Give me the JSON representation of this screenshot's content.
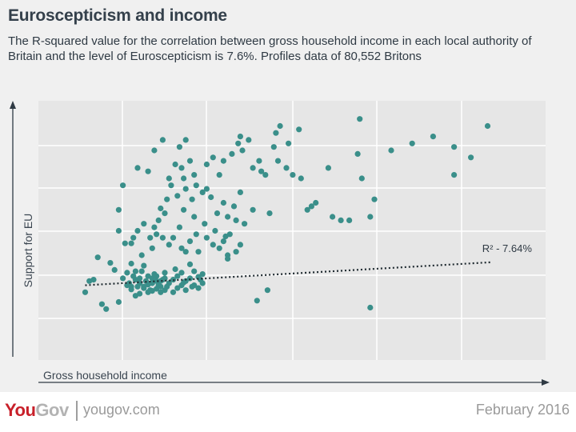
{
  "header": {
    "title": "Euroscepticism and income",
    "subtitle": "The R-squared value for the correlation between gross household income in each local authority of Britain and the level of Euroscepticism is 7.6%. Profiles data of 80,552 Britons"
  },
  "footer": {
    "brand_you": "You",
    "brand_gov": "Gov",
    "site": "yougov.com",
    "date": "February 2016"
  },
  "colors": {
    "point": "#3a8f8a",
    "background": "#f0f0f0",
    "grid": "#ffffff",
    "axis": "#2f3a44",
    "brand_red": "#c8202a"
  },
  "chart_data": {
    "type": "scatter",
    "title": "Euroscepticism and income",
    "xlabel": "Gross household income",
    "ylabel": "Support for EU",
    "grid": true,
    "axis_ticks_labeled": false,
    "x_grid_lines": 5,
    "y_grid_lines": 5,
    "trendline": {
      "style": "dotted",
      "label": "R² - 7.64%",
      "start": [
        0.2,
        0.52
      ],
      "end": [
        9.9,
        0.85
      ]
    },
    "points": [
      [
        0.2,
        0.42
      ],
      [
        0.3,
        0.58
      ],
      [
        0.4,
        0.6
      ],
      [
        0.6,
        0.25
      ],
      [
        0.7,
        0.18
      ],
      [
        0.5,
        0.92
      ],
      [
        0.8,
        0.84
      ],
      [
        0.9,
        0.74
      ],
      [
        1.0,
        0.28
      ],
      [
        1.1,
        0.62
      ],
      [
        1.2,
        0.52
      ],
      [
        1.3,
        0.83
      ],
      [
        1.4,
        0.37
      ],
      [
        1.5,
        0.55
      ],
      [
        1.6,
        0.48
      ],
      [
        1.7,
        0.65
      ],
      [
        1.8,
        0.44
      ],
      [
        1.9,
        0.58
      ],
      [
        2.0,
        0.5
      ],
      [
        2.1,
        0.7
      ],
      [
        1.2,
        0.7
      ],
      [
        1.3,
        0.46
      ],
      [
        1.4,
        0.6
      ],
      [
        1.5,
        0.4
      ],
      [
        1.6,
        0.8
      ],
      [
        1.7,
        0.53
      ],
      [
        1.8,
        0.62
      ],
      [
        1.9,
        0.47
      ],
      [
        2.0,
        0.58
      ],
      [
        2.1,
        0.45
      ],
      [
        1.25,
        0.55
      ],
      [
        1.35,
        0.65
      ],
      [
        1.45,
        0.5
      ],
      [
        1.55,
        0.72
      ],
      [
        1.65,
        0.58
      ],
      [
        1.75,
        0.45
      ],
      [
        1.85,
        0.68
      ],
      [
        1.95,
        0.52
      ],
      [
        2.05,
        0.6
      ],
      [
        2.15,
        0.5
      ],
      [
        1.3,
        0.5
      ],
      [
        1.4,
        0.72
      ],
      [
        1.5,
        0.62
      ],
      [
        1.6,
        0.5
      ],
      [
        1.7,
        0.42
      ],
      [
        1.8,
        0.55
      ],
      [
        1.9,
        0.65
      ],
      [
        2.0,
        0.42
      ],
      [
        2.1,
        0.62
      ],
      [
        2.2,
        0.55
      ],
      [
        2.3,
        0.6
      ],
      [
        2.4,
        0.48
      ],
      [
        2.5,
        0.7
      ],
      [
        2.6,
        0.58
      ],
      [
        2.7,
        0.82
      ],
      [
        2.8,
        0.52
      ],
      [
        2.9,
        0.64
      ],
      [
        3.0,
        0.55
      ],
      [
        2.3,
        0.42
      ],
      [
        2.4,
        0.65
      ],
      [
        2.5,
        0.52
      ],
      [
        2.6,
        0.45
      ],
      [
        2.7,
        0.62
      ],
      [
        2.8,
        0.72
      ],
      [
        2.9,
        0.48
      ],
      [
        3.0,
        0.68
      ],
      [
        2.35,
        0.75
      ],
      [
        2.55,
        0.56
      ],
      [
        2.75,
        0.5
      ],
      [
        2.95,
        0.6
      ],
      [
        1.0,
        1.6
      ],
      [
        1.15,
        1.12
      ],
      [
        1.3,
        1.12
      ],
      [
        1.35,
        1.2
      ],
      [
        1.45,
        1.3
      ],
      [
        1.55,
        0.95
      ],
      [
        1.6,
        1.4
      ],
      [
        1.75,
        1.2
      ],
      [
        1.85,
        1.35
      ],
      [
        1.9,
        1.25
      ],
      [
        1.95,
        1.45
      ],
      [
        2.05,
        1.2
      ],
      [
        2.1,
        1.55
      ],
      [
        2.2,
        1.1
      ],
      [
        2.3,
        1.2
      ],
      [
        2.45,
        1.35
      ],
      [
        2.5,
        1.05
      ],
      [
        2.6,
        1.0
      ],
      [
        2.7,
        1.15
      ],
      [
        2.85,
        1.25
      ],
      [
        2.9,
        1.0
      ],
      [
        3.1,
        1.2
      ],
      [
        3.25,
        1.1
      ],
      [
        3.3,
        1.3
      ],
      [
        3.4,
        1.05
      ],
      [
        3.5,
        1.15
      ],
      [
        3.6,
        0.95
      ],
      [
        3.65,
        1.25
      ],
      [
        3.8,
        1.0
      ],
      [
        3.9,
        1.1
      ],
      [
        2.0,
        1.62
      ],
      [
        2.4,
        1.8
      ],
      [
        2.55,
        1.6
      ],
      [
        2.8,
        1.5
      ],
      [
        3.05,
        1.4
      ],
      [
        3.35,
        1.55
      ],
      [
        2.75,
        1.75
      ],
      [
        2.6,
        1.9
      ],
      [
        2.85,
        1.95
      ],
      [
        3.0,
        1.85
      ],
      [
        3.5,
        1.7
      ],
      [
        3.9,
        1.85
      ],
      [
        3.75,
        1.65
      ],
      [
        3.6,
        1.5
      ],
      [
        3.55,
        1.22
      ],
      [
        3.1,
        1.9
      ],
      [
        3.2,
        1.78
      ],
      [
        2.15,
        1.75
      ],
      [
        1.1,
        1.95
      ],
      [
        1.0,
        1.3
      ],
      [
        3.1,
        2.25
      ],
      [
        3.7,
        2.4
      ],
      [
        3.85,
        2.55
      ],
      [
        3.9,
        2.65
      ],
      [
        2.2,
        2.05
      ],
      [
        2.55,
        2.05
      ],
      [
        4.0,
        1.4
      ],
      [
        2.5,
        2.2
      ],
      [
        5.0,
        2.2
      ],
      [
        4.5,
        2.1
      ],
      [
        2.05,
        2.6
      ],
      [
        1.85,
        2.45
      ],
      [
        2.35,
        2.25
      ],
      [
        2.6,
        2.6
      ],
      [
        4.2,
        2.2
      ],
      [
        4.7,
        2.5
      ],
      [
        1.7,
        2.15
      ],
      [
        4.35,
        2.3
      ],
      [
        3.25,
        2.35
      ],
      [
        4.1,
        2.6
      ],
      [
        2.7,
        2.3
      ],
      [
        1.45,
        2.2
      ],
      [
        2.8,
        2.1
      ],
      [
        3.4,
        2.1
      ],
      [
        3.5,
        2.3
      ],
      [
        2.25,
        1.95
      ],
      [
        2.45,
        2.5
      ],
      [
        4.75,
        2.7
      ],
      [
        4.85,
        2.8
      ],
      [
        3.95,
        2.45
      ],
      [
        5.3,
        2.75
      ],
      [
        4.4,
        2.15
      ],
      [
        4.8,
        2.3
      ],
      [
        5.15,
        2.1
      ],
      [
        5.35,
        2.05
      ],
      [
        5.6,
        1.65
      ],
      [
        6.1,
        1.5
      ],
      [
        6.5,
        1.45
      ],
      [
        7.0,
        1.5
      ],
      [
        7.1,
        1.75
      ],
      [
        5.5,
        1.6
      ],
      [
        6.0,
        2.2
      ],
      [
        6.7,
        2.4
      ],
      [
        7.5,
        2.45
      ],
      [
        8.0,
        2.55
      ],
      [
        8.5,
        2.65
      ],
      [
        9.0,
        2.5
      ],
      [
        9.4,
        2.35
      ],
      [
        9.8,
        2.8
      ],
      [
        5.05,
        2.55
      ],
      [
        4.2,
        1.6
      ],
      [
        4.6,
        1.55
      ],
      [
        3.8,
        1.45
      ],
      [
        6.8,
        2.05
      ],
      [
        5.7,
        1.7
      ],
      [
        9.0,
        2.1
      ],
      [
        7.0,
        0.2
      ],
      [
        4.55,
        0.45
      ],
      [
        4.3,
        0.3
      ],
      [
        3.6,
        0.9
      ],
      [
        6.3,
        1.45
      ],
      [
        6.75,
        2.9
      ],
      [
        1.8,
        1.05
      ]
    ]
  }
}
